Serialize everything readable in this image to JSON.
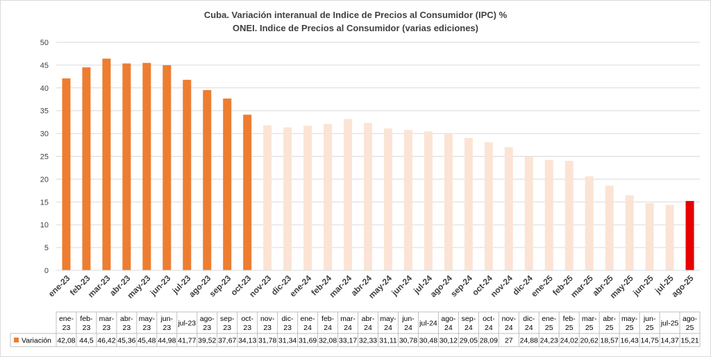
{
  "colors": {
    "highlight": "#ED7D31",
    "faded": "#FBE4D5",
    "latest": "#E60000",
    "grid": "#D9D9D9",
    "text": "#404040"
  },
  "chart_data": {
    "type": "bar",
    "title": "Cuba. Variación interanual de Indice de Precios al Consumidor (IPC) %",
    "subtitle": "ONEI. Indice de Precios al Consumidor (varias ediciones)",
    "xlabel": "",
    "ylabel": "",
    "ylim": [
      0,
      50
    ],
    "yticks": [
      0,
      5,
      10,
      15,
      20,
      25,
      30,
      35,
      40,
      45,
      50
    ],
    "grid": true,
    "categories": [
      "ene-23",
      "feb-23",
      "mar-23",
      "abr-23",
      "may-23",
      "jun-23",
      "jul-23",
      "ago-23",
      "sep-23",
      "oct-23",
      "nov-23",
      "dic-23",
      "ene-24",
      "feb-24",
      "mar-24",
      "abr-24",
      "may-24",
      "jun-24",
      "jul-24",
      "ago-24",
      "sep-24",
      "oct-24",
      "nov-24",
      "dic-24",
      "ene-25",
      "feb-25",
      "mar-25",
      "abr-25",
      "may-25",
      "jun-25",
      "jul-25",
      "ago-25"
    ],
    "series": [
      {
        "name": "Variación",
        "values": [
          42.08,
          44.5,
          46.42,
          45.36,
          45.48,
          44.98,
          41.77,
          39.52,
          37.67,
          34.13,
          31.78,
          31.34,
          31.69,
          32.08,
          33.17,
          32.33,
          31.11,
          30.78,
          30.48,
          30.12,
          29.05,
          28.09,
          27,
          24.88,
          24.23,
          24.02,
          20.62,
          18.57,
          16.43,
          14.75,
          14.37,
          15.21
        ]
      }
    ],
    "table": {
      "legend_label": "Variación",
      "values_text": [
        "42,08",
        "44,5",
        "46,42",
        "45,36",
        "45,48",
        "44,98",
        "41,77",
        "39,52",
        "37,67",
        "34,13",
        "31,78",
        "31,34",
        "31,69",
        "32,08",
        "33,17",
        "32,33",
        "31,11",
        "30,78",
        "30,48",
        "30,12",
        "29,05",
        "28,09",
        "27",
        "24,88",
        "24,23",
        "24,02",
        "20,62",
        "18,57",
        "16,43",
        "14,75",
        "14,37",
        "15,21"
      ]
    }
  }
}
